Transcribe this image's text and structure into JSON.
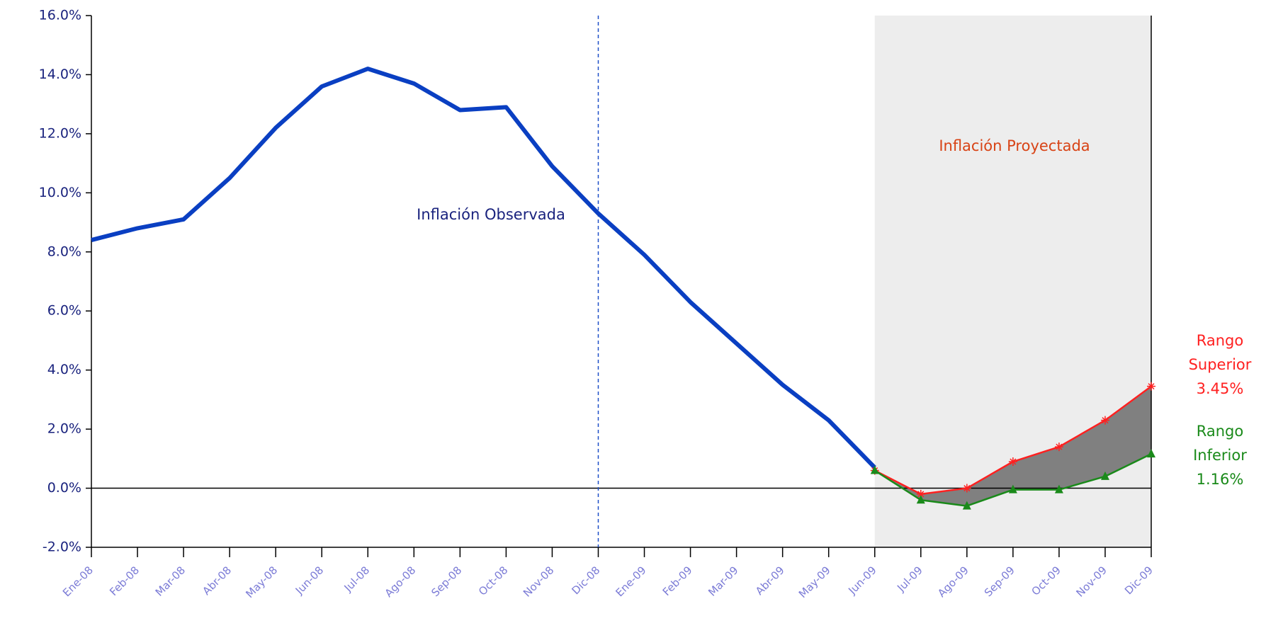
{
  "chart_data": {
    "type": "line",
    "categories": [
      "Ene-08",
      "Feb-08",
      "Mar-08",
      "Abr-08",
      "May-08",
      "Jun-08",
      "Jul-08",
      "Ago-08",
      "Sep-08",
      "Oct-08",
      "Nov-08",
      "Dic-08",
      "Ene-09",
      "Feb-09",
      "Mar-09",
      "Abr-09",
      "May-09",
      "Jun-09",
      "Jul-09",
      "Ago-09",
      "Sep-09",
      "Oct-09",
      "Nov-09",
      "Dic-09"
    ],
    "series": [
      {
        "name": "Inflación Observada",
        "color": "#0a3fc2",
        "values": [
          8.4,
          8.8,
          9.1,
          10.5,
          12.2,
          13.6,
          14.2,
          13.7,
          12.8,
          12.9,
          10.9,
          9.3,
          7.9,
          6.3,
          4.9,
          3.5,
          2.3,
          0.7,
          null,
          null,
          null,
          null,
          null,
          null
        ]
      },
      {
        "name": "Rango Superior",
        "color": "#ff2020",
        "values": [
          null,
          null,
          null,
          null,
          null,
          null,
          null,
          null,
          null,
          null,
          null,
          null,
          null,
          null,
          null,
          null,
          null,
          0.6,
          -0.2,
          0.0,
          0.9,
          1.4,
          2.3,
          3.45
        ]
      },
      {
        "name": "Rango Inferior",
        "color": "#1a8a1a",
        "values": [
          null,
          null,
          null,
          null,
          null,
          null,
          null,
          null,
          null,
          null,
          null,
          null,
          null,
          null,
          null,
          null,
          null,
          0.6,
          -0.4,
          -0.6,
          -0.05,
          -0.05,
          0.4,
          1.16
        ]
      }
    ],
    "ylim": [
      -2,
      16
    ],
    "yticks": [
      {
        "value": -2,
        "label": "-2.0%"
      },
      {
        "value": 0,
        "label": "0.0%"
      },
      {
        "value": 2,
        "label": "2.0%"
      },
      {
        "value": 4,
        "label": "4.0%"
      },
      {
        "value": 6,
        "label": "6.0%"
      },
      {
        "value": 8,
        "label": "8.0%"
      },
      {
        "value": 10,
        "label": "10.0%"
      },
      {
        "value": 12,
        "label": "12.0%"
      },
      {
        "value": 14,
        "label": "14.0%"
      },
      {
        "value": 16,
        "label": "16.0%"
      }
    ],
    "shade_from": "Jun-09",
    "divider_at": "Dic-08",
    "annotations": {
      "observed": "Inflación Observada",
      "projected": "Inflación Proyectada",
      "upper": [
        "Rango",
        "Superior",
        "3.45%"
      ],
      "lower": [
        "Rango",
        "Inferior",
        "1.16%"
      ]
    }
  }
}
